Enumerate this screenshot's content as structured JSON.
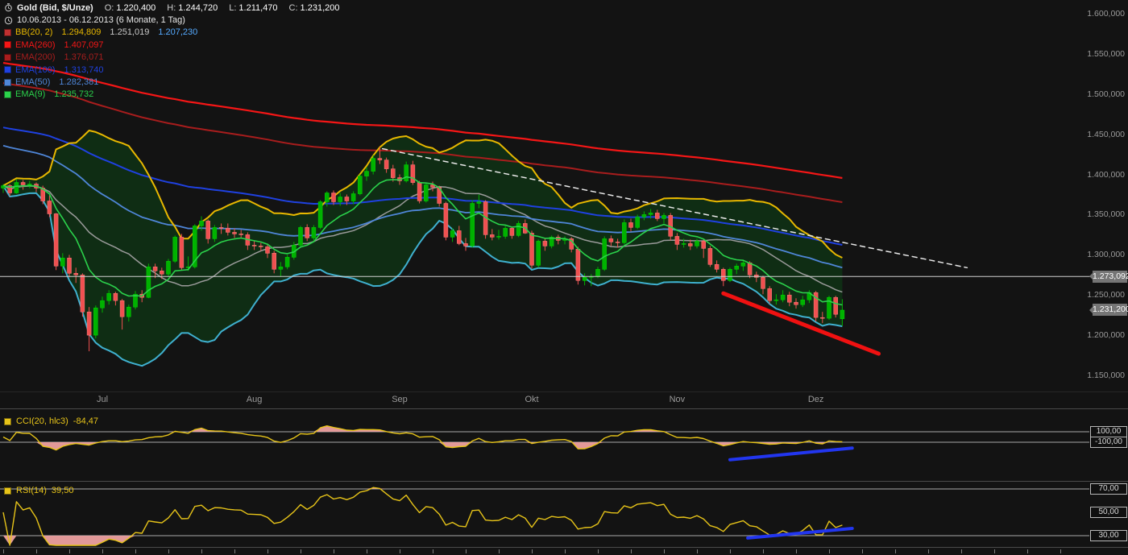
{
  "header": {
    "instrument": "Gold (Bid, $/Unze)",
    "o_label": "O:",
    "o_value": "1.220,400",
    "h_label": "H:",
    "h_value": "1.244,720",
    "l_label": "L:",
    "l_value": "1.211,470",
    "c_label": "C:",
    "c_value": "1.231,200",
    "date_range": "10.06.2013 - 06.12.2013 (6 Monate, 1 Tag)"
  },
  "legend": {
    "bb": {
      "label": "BB(20, 2)",
      "v1": "1.294,809",
      "v2": "1.251,019",
      "v3": "1.207,230"
    },
    "ema260": {
      "label": "EMA(260)",
      "value": "1.407,097"
    },
    "ema200": {
      "label": "EMA(200)",
      "value": "1.376,071"
    },
    "ema100": {
      "label": "EMA(100)",
      "value": "1.313,740"
    },
    "ema50": {
      "label": "EMA(50)",
      "value": "1.282,381"
    },
    "ema9": {
      "label": "EMA(9)",
      "value": "1.235,732"
    }
  },
  "cci": {
    "label": "CCI(20, hlc3)",
    "value": "-84,47",
    "levels": [
      {
        "text": "100,00",
        "value": 100,
        "line": true
      },
      {
        "text": "-100,00",
        "value": -100,
        "line": true
      }
    ]
  },
  "rsi": {
    "label": "RSI(14)",
    "value": "39,50",
    "levels": [
      {
        "text": "70,00",
        "value": 70,
        "line": true
      },
      {
        "text": "50,00",
        "value": 50,
        "line": false
      },
      {
        "text": "30,00",
        "value": 30,
        "line": true
      }
    ]
  },
  "axis": {
    "y_labels": [
      {
        "text": "1.600,000",
        "value": 1600
      },
      {
        "text": "1.550,000",
        "value": 1550
      },
      {
        "text": "1.500,000",
        "value": 1500
      },
      {
        "text": "1.450,000",
        "value": 1450
      },
      {
        "text": "1.400,000",
        "value": 1400
      },
      {
        "text": "1.350,000",
        "value": 1350
      },
      {
        "text": "1.300,000",
        "value": 1300
      },
      {
        "text": "1.250,000",
        "value": 1250
      },
      {
        "text": "1.200,000",
        "value": 1200
      },
      {
        "text": "1.150,000",
        "value": 1150
      }
    ],
    "months": [
      {
        "text": "Jul",
        "index": 15
      },
      {
        "text": "Aug",
        "index": 38
      },
      {
        "text": "Sep",
        "index": 60
      },
      {
        "text": "Okt",
        "index": 80
      },
      {
        "text": "Nov",
        "index": 102
      },
      {
        "text": "Dez",
        "index": 123
      }
    ],
    "price_badges": [
      {
        "text": "1.273,092",
        "value": 1273.092
      },
      {
        "text": "1.231,200",
        "value": 1231.2
      }
    ]
  },
  "colors": {
    "background": "#131313",
    "up": "#00b200",
    "up_edge": "#00d800",
    "down": "#f05050",
    "down_edge": "#ff8080",
    "bb_upper": "#e8b800",
    "bb_mid": "#9a9a9a",
    "bb_lower": "#3fb0cf",
    "bb_mid_text": "#c8c8c8",
    "bb_lower_text": "#55aaff",
    "band_fill": "#0f3315",
    "ema260": "#f51616",
    "ema200": "#a81d1d",
    "ema100": "#1f41e0",
    "ema50": "#4f86d8",
    "ema9": "#2bd24b",
    "osc_line": "#e7c419",
    "osc_fill": "#eda0a0",
    "level_line": "#dcdcdc",
    "trend_blue": "#2236f0",
    "trend_red": "#f01111",
    "dashed_white": "#e8e8e8",
    "hline": "#d0d0d0",
    "badge_bg": "#757575",
    "badge_text": "#ffffff",
    "axis_text": "#9a9a9a",
    "bb_swatch": "#c03030",
    "text_primary": "#e8e8e8"
  },
  "chart_data": [
    {
      "type": "candlestick",
      "title": "Gold (Bid, $/Unze)",
      "range": "10.06.2013 - 06.12.2013 (6 Monate, 1 Tag)",
      "ylim": [
        1150,
        1600
      ],
      "y_ticks": [
        1600,
        1550,
        1500,
        1450,
        1400,
        1350,
        1300,
        1250,
        1200,
        1150
      ],
      "x_tick_labels": [
        "Jul",
        "Aug",
        "Sep",
        "Okt",
        "Nov",
        "Dez"
      ],
      "last_ohlc": {
        "o": 1220.4,
        "h": 1244.72,
        "l": 1211.47,
        "c": 1231.2
      },
      "hline": 1273.092,
      "overlays": [
        {
          "name": "BB(20, 2)",
          "type": "bollinger",
          "period": 20,
          "stddev": 2,
          "values": {
            "upper": 1294.809,
            "middle": 1251.019,
            "lower": 1207.23
          }
        },
        {
          "name": "EMA(260)",
          "type": "ema",
          "period": 260,
          "seed": 1540,
          "value": 1407.097,
          "color": "ema260",
          "width": 2.2
        },
        {
          "name": "EMA(200)",
          "type": "ema",
          "period": 200,
          "seed": 1515,
          "value": 1376.071,
          "color": "ema200",
          "width": 2
        },
        {
          "name": "EMA(100)",
          "type": "ema",
          "period": 100,
          "seed": 1460,
          "value": 1313.74,
          "color": "ema100",
          "width": 2
        },
        {
          "name": "EMA(50)",
          "type": "ema",
          "period": 50,
          "seed": 1438,
          "value": 1282.381,
          "color": "ema50",
          "width": 1.8
        },
        {
          "name": "EMA(9)",
          "type": "ema",
          "period": 9,
          "seed": null,
          "value": 1235.732,
          "color": "ema9",
          "width": 1.6
        }
      ],
      "trendlines": [
        {
          "name": "dashed-downtrend",
          "from_index": 57.4,
          "from_price": 1432,
          "to_index": 145.9,
          "to_price": 1284,
          "style": "dashed",
          "color": "dashed_white",
          "width": 1.5
        },
        {
          "name": "red-downtrend",
          "from_index": 109,
          "from_price": 1252,
          "to_index": 132.5,
          "to_price": 1177,
          "style": "solid",
          "color": "trend_red",
          "width": 5
        }
      ],
      "ohlc": [
        [
          1383,
          1388,
          1377,
          1386
        ],
        [
          1386,
          1388,
          1373,
          1377
        ],
        [
          1377,
          1394,
          1376,
          1390
        ],
        [
          1390,
          1393,
          1381,
          1387
        ],
        [
          1387,
          1392,
          1383,
          1388
        ],
        [
          1388,
          1390,
          1378,
          1383
        ],
        [
          1383,
          1386,
          1363,
          1367
        ],
        [
          1367,
          1374,
          1347,
          1351
        ],
        [
          1351,
          1352,
          1281,
          1286
        ],
        [
          1286,
          1302,
          1277,
          1296
        ],
        [
          1296,
          1300,
          1272,
          1277
        ],
        [
          1277,
          1284,
          1265,
          1275
        ],
        [
          1275,
          1277,
          1223,
          1229
        ],
        [
          1229,
          1235,
          1180,
          1200
        ],
        [
          1200,
          1237,
          1196,
          1234
        ],
        [
          1234,
          1248,
          1228,
          1243
        ],
        [
          1243,
          1256,
          1238,
          1252
        ],
        [
          1252,
          1254,
          1237,
          1243
        ],
        [
          1243,
          1245,
          1207,
          1223
        ],
        [
          1223,
          1238,
          1217,
          1235
        ],
        [
          1235,
          1255,
          1232,
          1251
        ],
        [
          1251,
          1256,
          1241,
          1247
        ],
        [
          1247,
          1289,
          1246,
          1285
        ],
        [
          1285,
          1289,
          1271,
          1280
        ],
        [
          1280,
          1284,
          1270,
          1276
        ],
        [
          1276,
          1295,
          1273,
          1292
        ],
        [
          1292,
          1324,
          1290,
          1322
        ],
        [
          1322,
          1326,
          1281,
          1284
        ],
        [
          1284,
          1298,
          1280,
          1285
        ],
        [
          1285,
          1338,
          1283,
          1336
        ],
        [
          1336,
          1348,
          1330,
          1342
        ],
        [
          1342,
          1344,
          1314,
          1320
        ],
        [
          1320,
          1337,
          1316,
          1334
        ],
        [
          1334,
          1339,
          1326,
          1333
        ],
        [
          1333,
          1339,
          1324,
          1328
        ],
        [
          1328,
          1333,
          1321,
          1326
        ],
        [
          1326,
          1331,
          1320,
          1325
        ],
        [
          1325,
          1328,
          1306,
          1312
        ],
        [
          1312,
          1317,
          1306,
          1311
        ],
        [
          1311,
          1315,
          1305,
          1310
        ],
        [
          1310,
          1314,
          1296,
          1302
        ],
        [
          1302,
          1305,
          1277,
          1282
        ],
        [
          1282,
          1291,
          1273,
          1285
        ],
        [
          1285,
          1300,
          1282,
          1297
        ],
        [
          1297,
          1316,
          1294,
          1312
        ],
        [
          1312,
          1336,
          1309,
          1334
        ],
        [
          1334,
          1338,
          1317,
          1321
        ],
        [
          1321,
          1337,
          1318,
          1334
        ],
        [
          1334,
          1368,
          1332,
          1366
        ],
        [
          1366,
          1379,
          1360,
          1377
        ],
        [
          1377,
          1380,
          1362,
          1366
        ],
        [
          1366,
          1377,
          1361,
          1372
        ],
        [
          1372,
          1375,
          1362,
          1367
        ],
        [
          1367,
          1379,
          1363,
          1376
        ],
        [
          1376,
          1400,
          1374,
          1398
        ],
        [
          1398,
          1409,
          1392,
          1404
        ],
        [
          1404,
          1424,
          1400,
          1420
        ],
        [
          1420,
          1434,
          1413,
          1418
        ],
        [
          1418,
          1421,
          1402,
          1407
        ],
        [
          1407,
          1412,
          1391,
          1396
        ],
        [
          1396,
          1400,
          1387,
          1392
        ],
        [
          1392,
          1416,
          1390,
          1412
        ],
        [
          1412,
          1417,
          1387,
          1390
        ],
        [
          1390,
          1392,
          1364,
          1367
        ],
        [
          1367,
          1390,
          1365,
          1387
        ],
        [
          1387,
          1391,
          1379,
          1384
        ],
        [
          1384,
          1386,
          1360,
          1364
        ],
        [
          1364,
          1366,
          1318,
          1322
        ],
        [
          1322,
          1333,
          1316,
          1330
        ],
        [
          1330,
          1336,
          1312,
          1314
        ],
        [
          1314,
          1321,
          1305,
          1311
        ],
        [
          1311,
          1368,
          1309,
          1364
        ],
        [
          1364,
          1375,
          1358,
          1366
        ],
        [
          1366,
          1368,
          1320,
          1325
        ],
        [
          1325,
          1332,
          1318,
          1322
        ],
        [
          1322,
          1331,
          1319,
          1323
        ],
        [
          1323,
          1336,
          1320,
          1333
        ],
        [
          1333,
          1335,
          1320,
          1324
        ],
        [
          1324,
          1342,
          1322,
          1339
        ],
        [
          1339,
          1344,
          1326,
          1327
        ],
        [
          1327,
          1330,
          1283,
          1287
        ],
        [
          1287,
          1319,
          1284,
          1317
        ],
        [
          1317,
          1321,
          1305,
          1311
        ],
        [
          1311,
          1324,
          1308,
          1322
        ],
        [
          1322,
          1325,
          1313,
          1318
        ],
        [
          1318,
          1323,
          1313,
          1320
        ],
        [
          1320,
          1322,
          1303,
          1307
        ],
        [
          1307,
          1310,
          1263,
          1268
        ],
        [
          1268,
          1277,
          1262,
          1272
        ],
        [
          1272,
          1276,
          1261,
          1273
        ],
        [
          1273,
          1285,
          1271,
          1282
        ],
        [
          1282,
          1323,
          1280,
          1320
        ],
        [
          1320,
          1324,
          1311,
          1316
        ],
        [
          1316,
          1320,
          1309,
          1315
        ],
        [
          1315,
          1344,
          1313,
          1340
        ],
        [
          1340,
          1345,
          1329,
          1334
        ],
        [
          1334,
          1350,
          1332,
          1347
        ],
        [
          1347,
          1354,
          1343,
          1350
        ],
        [
          1350,
          1357,
          1345,
          1352
        ],
        [
          1352,
          1356,
          1342,
          1345
        ],
        [
          1345,
          1352,
          1339,
          1349
        ],
        [
          1349,
          1352,
          1318,
          1323
        ],
        [
          1323,
          1327,
          1306,
          1313
        ],
        [
          1313,
          1320,
          1309,
          1314
        ],
        [
          1314,
          1319,
          1306,
          1311
        ],
        [
          1311,
          1320,
          1308,
          1317
        ],
        [
          1317,
          1319,
          1296,
          1308
        ],
        [
          1308,
          1311,
          1285,
          1288
        ],
        [
          1288,
          1293,
          1278,
          1282
        ],
        [
          1282,
          1284,
          1261,
          1268
        ],
        [
          1268,
          1284,
          1266,
          1282
        ],
        [
          1282,
          1289,
          1276,
          1286
        ],
        [
          1286,
          1294,
          1280,
          1290
        ],
        [
          1290,
          1292,
          1271,
          1275
        ],
        [
          1275,
          1279,
          1266,
          1272
        ],
        [
          1272,
          1274,
          1251,
          1258
        ],
        [
          1258,
          1261,
          1239,
          1243
        ],
        [
          1243,
          1251,
          1238,
          1244
        ],
        [
          1244,
          1256,
          1241,
          1250
        ],
        [
          1250,
          1254,
          1236,
          1241
        ],
        [
          1241,
          1246,
          1233,
          1238
        ],
        [
          1238,
          1249,
          1235,
          1244
        ],
        [
          1244,
          1256,
          1240,
          1253
        ],
        [
          1253,
          1255,
          1217,
          1222
        ],
        [
          1222,
          1229,
          1215,
          1221
        ],
        [
          1221,
          1249,
          1219,
          1247
        ],
        [
          1247,
          1249,
          1222,
          1226
        ],
        [
          1220.4,
          1244.72,
          1211.47,
          1231.2
        ]
      ]
    },
    {
      "type": "line",
      "name": "CCI(20, hlc3)",
      "period": 20,
      "source": "hlc3",
      "last_value": -84.47,
      "levels": [
        100,
        -100
      ],
      "computed_from": "ohlc",
      "trendline": {
        "from_index": 110,
        "from_value": -430,
        "to_index": 128.5,
        "to_value": -210,
        "color": "trend_blue",
        "width": 4
      }
    },
    {
      "type": "line",
      "name": "RSI(14)",
      "period": 14,
      "last_value": 39.5,
      "levels": [
        70,
        50,
        30
      ],
      "computed_from": "ohlc",
      "trendline": {
        "from_index": 112.7,
        "from_value": 28,
        "to_index": 128.5,
        "to_value": 36.2,
        "color": "trend_blue",
        "width": 4
      }
    }
  ]
}
